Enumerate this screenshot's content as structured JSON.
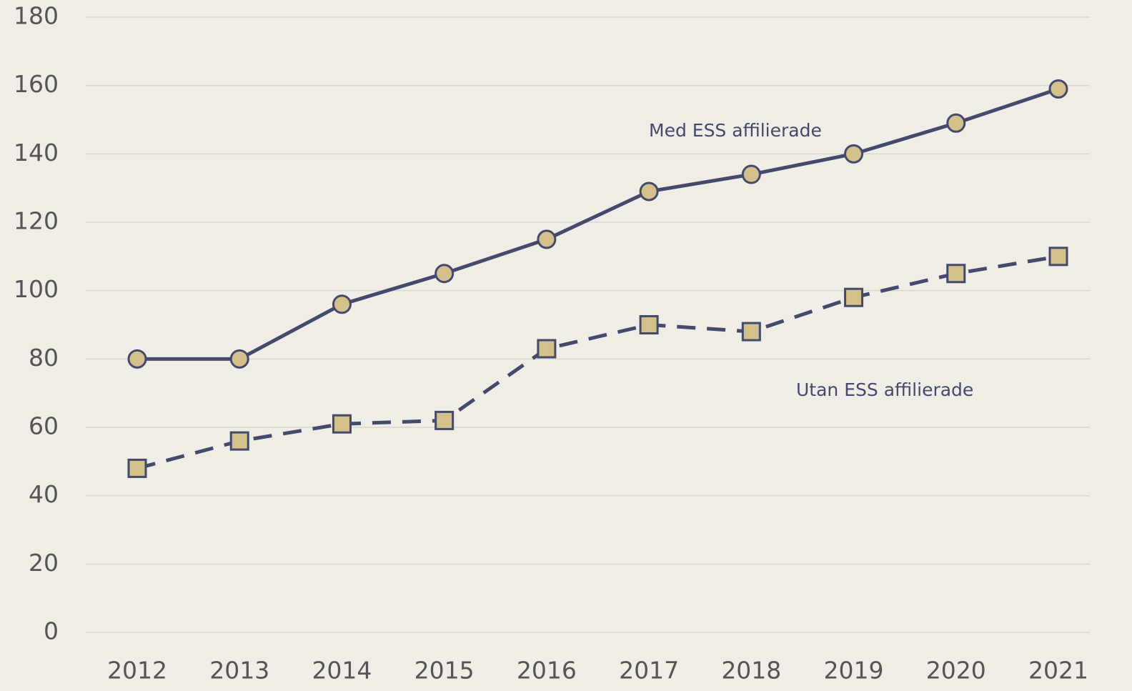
{
  "chart_data": {
    "type": "line",
    "categories": [
      "2012",
      "2013",
      "2014",
      "2015",
      "2016",
      "2017",
      "2018",
      "2019",
      "2020",
      "2021"
    ],
    "series": [
      {
        "name": "Med ESS affilierade",
        "color": "#444a6b",
        "marker_color": "#d4c08a",
        "marker": "circle",
        "line_style": "solid",
        "values": [
          80,
          80,
          96,
          105,
          115,
          129,
          134,
          140,
          149,
          159
        ]
      },
      {
        "name": "Utan ESS affilierade",
        "color": "#444a6b",
        "marker_color": "#d4c08a",
        "marker": "square",
        "line_style": "dashed",
        "values": [
          48,
          56,
          61,
          62,
          83,
          90,
          88,
          98,
          105,
          110
        ]
      }
    ],
    "ylim": [
      0,
      180
    ],
    "yticks": [
      0,
      20,
      40,
      60,
      80,
      100,
      120,
      140,
      160,
      180
    ],
    "grid": true
  }
}
